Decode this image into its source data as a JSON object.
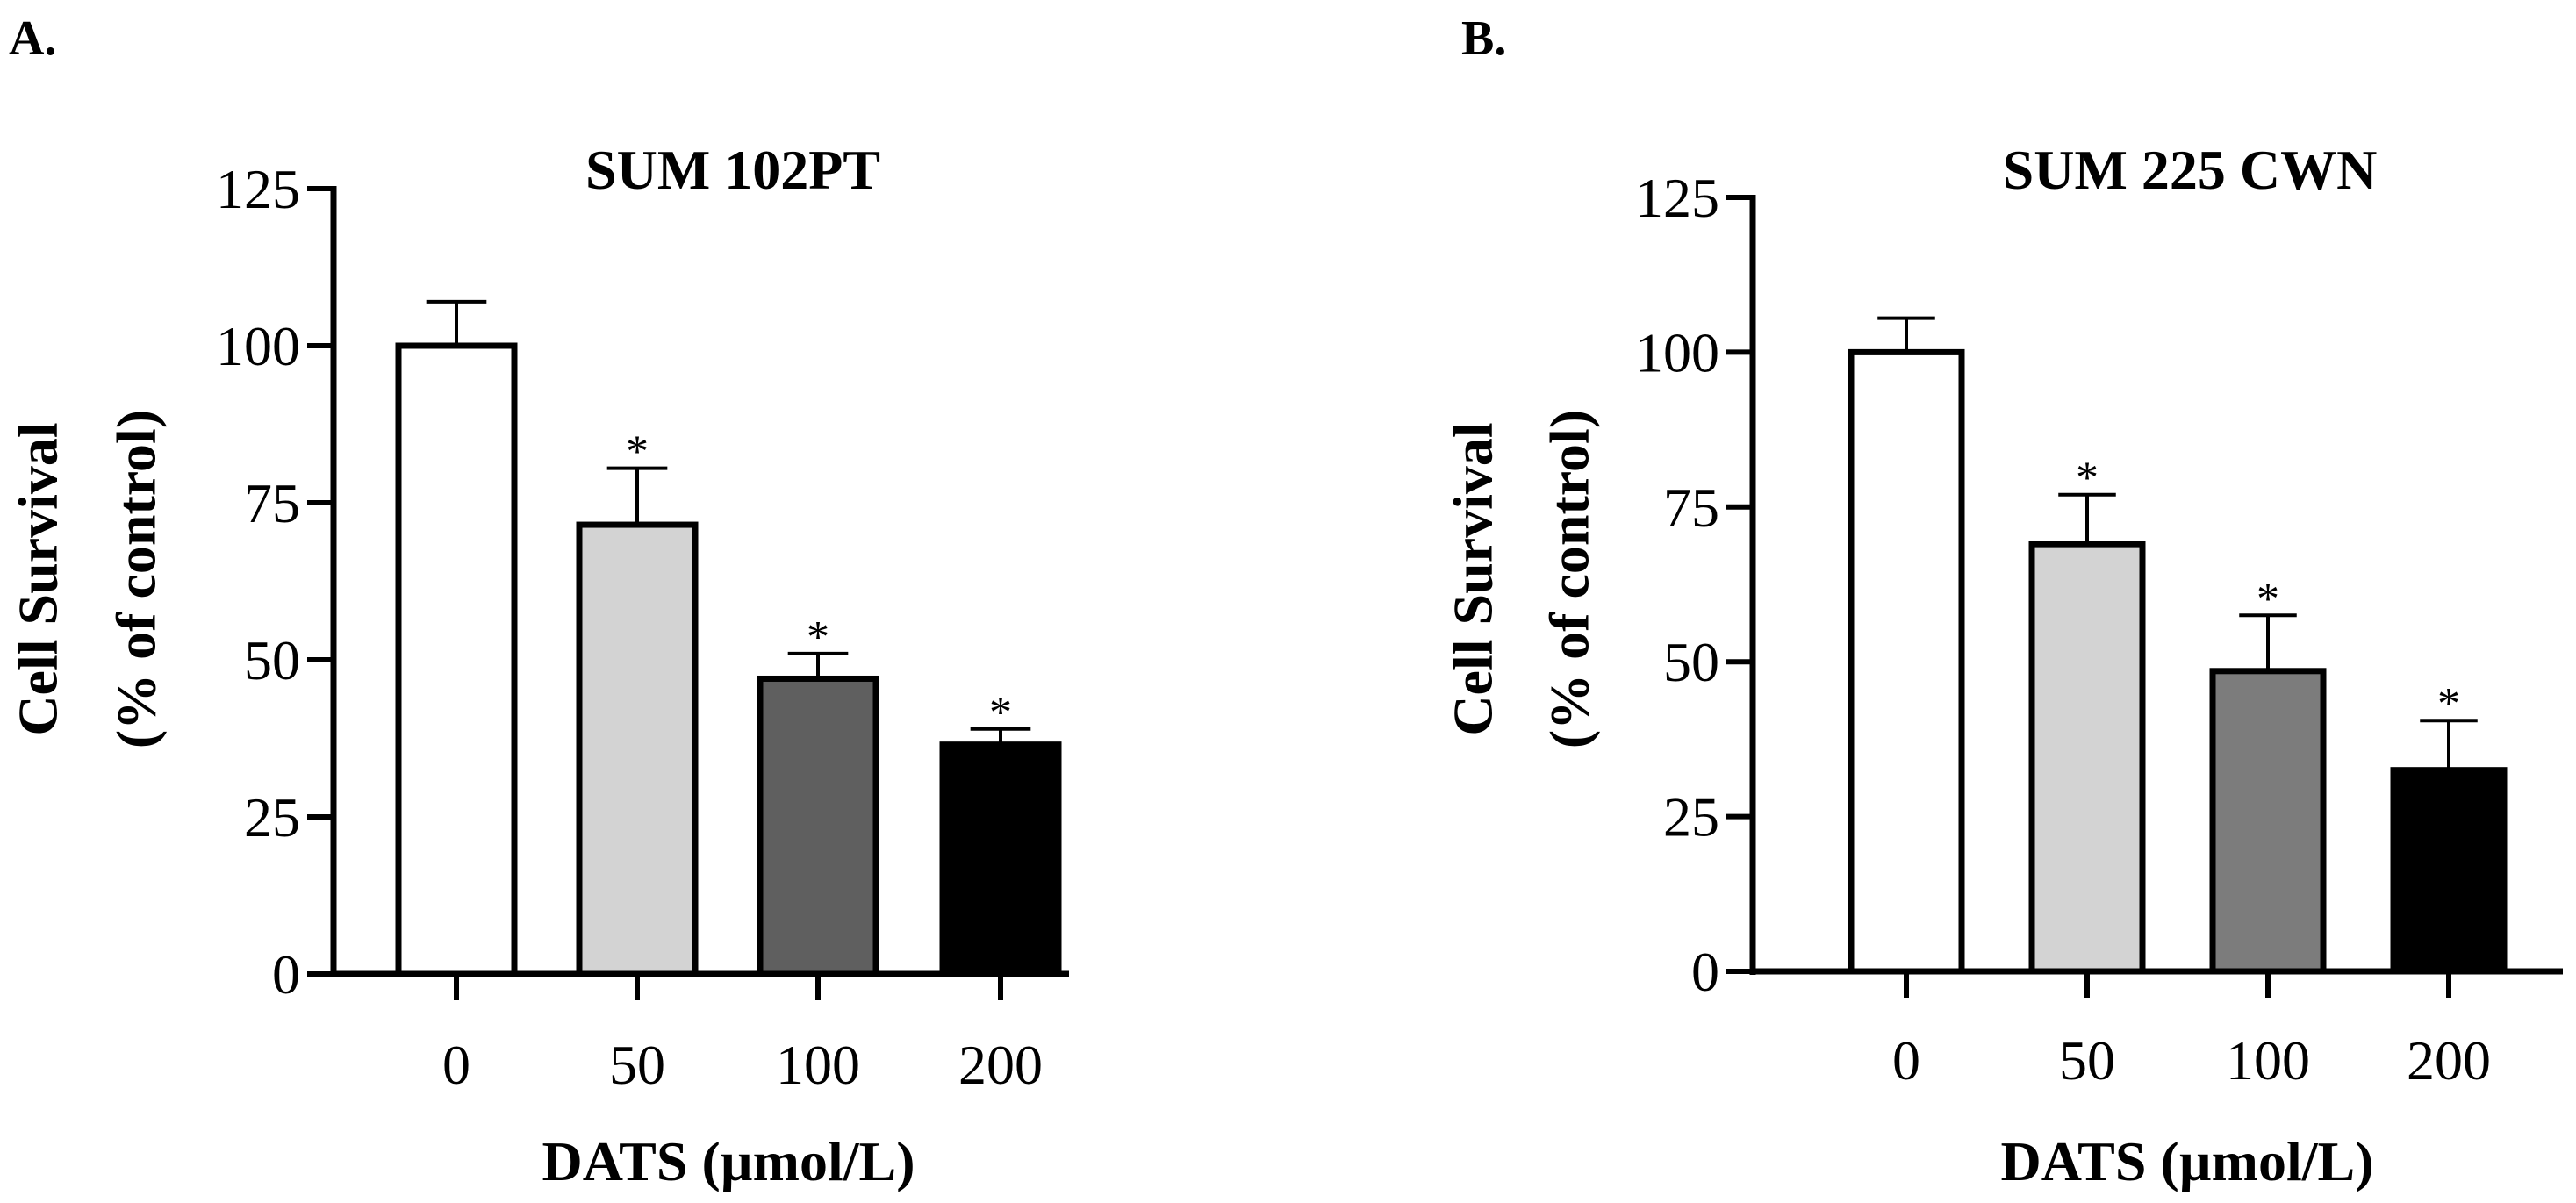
{
  "chart_data": [
    {
      "panel": "A.",
      "type": "bar",
      "title": "SUM 102PT",
      "xlabel": "DATS (µmol/L)",
      "ylabel": [
        "Cell Survival",
        "(% of control)"
      ],
      "categories": [
        "0",
        "50",
        "100",
        "200"
      ],
      "values": [
        100,
        71.5,
        47,
        36.5
      ],
      "errors": [
        7,
        9,
        4,
        2.5
      ],
      "significance": [
        "",
        "*",
        "*",
        "*"
      ],
      "bar_colors": [
        "#ffffff",
        "#d3d3d3",
        "#5f5f5f",
        "#000000"
      ],
      "yticks": [
        "0",
        "25",
        "50",
        "75",
        "100",
        "125"
      ],
      "ylim": [
        0,
        125
      ],
      "grid": false
    },
    {
      "panel": "B.",
      "type": "bar",
      "title": "SUM 225 CWN",
      "xlabel": "DATS (µmol/L)",
      "ylabel": [
        "Cell Survival",
        "(% of control)"
      ],
      "categories": [
        "0",
        "50",
        "100",
        "200"
      ],
      "values": [
        100,
        69,
        48.5,
        32.5
      ],
      "errors": [
        5.5,
        8,
        9,
        8
      ],
      "significance": [
        "",
        "*",
        "*",
        "*"
      ],
      "bar_colors": [
        "#ffffff",
        "#d3d3d3",
        "#7c7c7c",
        "#000000"
      ],
      "yticks": [
        "0",
        "25",
        "50",
        "75",
        "100",
        "125"
      ],
      "ylim": [
        0,
        125
      ],
      "grid": false
    }
  ]
}
